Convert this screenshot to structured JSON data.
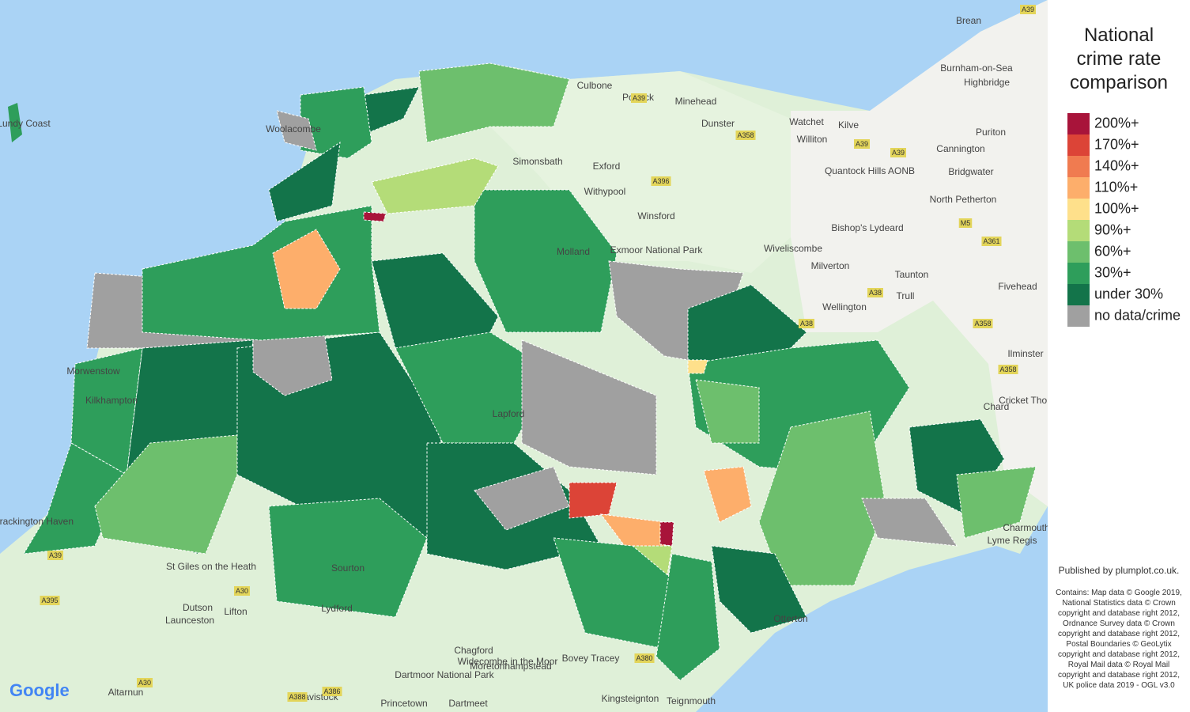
{
  "map": {
    "places": [
      "Brean",
      "Burnham-on-Sea",
      "Highbridge",
      "Culbone",
      "Porlock",
      "Minehead",
      "Dunster",
      "Watchet",
      "Williton",
      "Kilve",
      "Puriton",
      "Cannington",
      "Bridgwater",
      "Quantock Hills AONB",
      "North Petherton",
      "Bishop's Lydeard",
      "Simonsbath",
      "Exford",
      "Withypool",
      "Winsford",
      "Exmoor National Park",
      "Wiveliscombe",
      "Milverton",
      "Taunton",
      "Trull",
      "Wellington",
      "Fivehead",
      "Ilminster",
      "Chard",
      "Cricket Thomas",
      "Charmouth",
      "Lyme Regis",
      "St Giles on the Heath",
      "Lifton",
      "Dutson",
      "Launceston",
      "Altarnun",
      "Chagford",
      "Moretonhampstead",
      "Bovey Tracey",
      "Widecombe in the Moor",
      "Dartmoor National Park",
      "Tavistock",
      "Princetown",
      "Dartmeet",
      "Kingsteignton",
      "Teignmouth",
      "Lundy Coast",
      "Woolacombe",
      "Morwenstow",
      "Kilkhampton",
      "Crackington Haven",
      "Molland",
      "Lapford",
      "Sourton",
      "Lydford",
      "Otterton"
    ],
    "roads": [
      "A39",
      "A39",
      "A358",
      "A39",
      "A39",
      "A396",
      "A38",
      "A38",
      "A361",
      "A358",
      "A358",
      "M5",
      "A30",
      "A395",
      "A30",
      "A386",
      "A388",
      "A380",
      "A39"
    ]
  },
  "legend": {
    "title": "National crime rate comparison",
    "items": [
      {
        "label": "200%+",
        "color": "#a8143a"
      },
      {
        "label": "170%+",
        "color": "#dc4437"
      },
      {
        "label": "140%+",
        "color": "#f07b50"
      },
      {
        "label": "110%+",
        "color": "#fdae6b"
      },
      {
        "label": "100%+",
        "color": "#fee08b"
      },
      {
        "label": "90%+",
        "color": "#b4dc78"
      },
      {
        "label": "60%+",
        "color": "#6dbf6d"
      },
      {
        "label": "30%+",
        "color": "#2e9e5b"
      },
      {
        "label": "under 30%",
        "color": "#13744a"
      },
      {
        "label": "no data/crime",
        "color": "#a0a0a0"
      }
    ]
  },
  "footer": {
    "published": "Published by plumplot.co.uk.",
    "contains": "Contains: Map data © Google 2019, National Statistics data © Crown copyright and database right 2012, Ordnance Survey data © Crown copyright and database right 2012, Postal Boundaries © GeoLytix copyright and database right 2012, Royal Mail data © Royal Mail copyright and database right 2012, UK police data 2019 - OGL v3.0",
    "logo": "Google"
  }
}
